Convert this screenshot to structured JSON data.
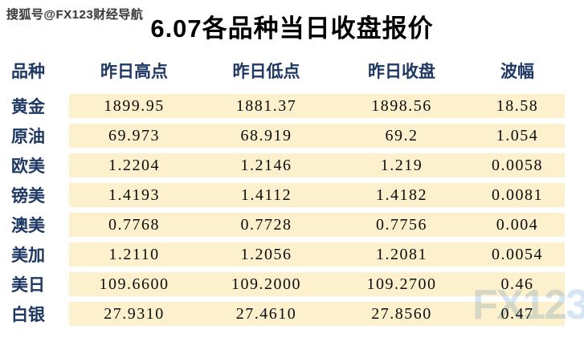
{
  "page": {
    "sohu_watermark": "搜狐号@FX123财经导航",
    "brand_watermark": "FX123",
    "title": "6.07各品种当日收盘报价"
  },
  "table": {
    "headers": [
      "品种",
      "昨日高点",
      "昨日低点",
      "昨日收盘",
      "波幅"
    ],
    "rows": [
      {
        "name": "黄金",
        "high": "1899.95",
        "low": "1881.37",
        "close": "1898.56",
        "range": "18.58"
      },
      {
        "name": "原油",
        "high": "69.973",
        "low": "68.919",
        "close": "69.2",
        "range": "1.054"
      },
      {
        "name": "欧美",
        "high": "1.2204",
        "low": "1.2146",
        "close": "1.219",
        "range": "0.0058"
      },
      {
        "name": "镑美",
        "high": "1.4193",
        "low": "1.4112",
        "close": "1.4182",
        "range": "0.0081"
      },
      {
        "name": "澳美",
        "high": "0.7768",
        "low": "0.7728",
        "close": "0.7756",
        "range": "0.004"
      },
      {
        "name": "美加",
        "high": "1.2110",
        "low": "1.2056",
        "close": "1.2081",
        "range": "0.0054"
      },
      {
        "name": "美日",
        "high": "109.6600",
        "low": "109.2000",
        "close": "109.2700",
        "range": "0.46"
      },
      {
        "name": "白银",
        "high": "27.9310",
        "low": "27.4610",
        "close": "27.8560",
        "range": "0.47"
      }
    ]
  },
  "colors": {
    "header_text": "#1f3864",
    "row_band": "#fdf0cc",
    "brand_watermark": "#c9dcf0"
  }
}
